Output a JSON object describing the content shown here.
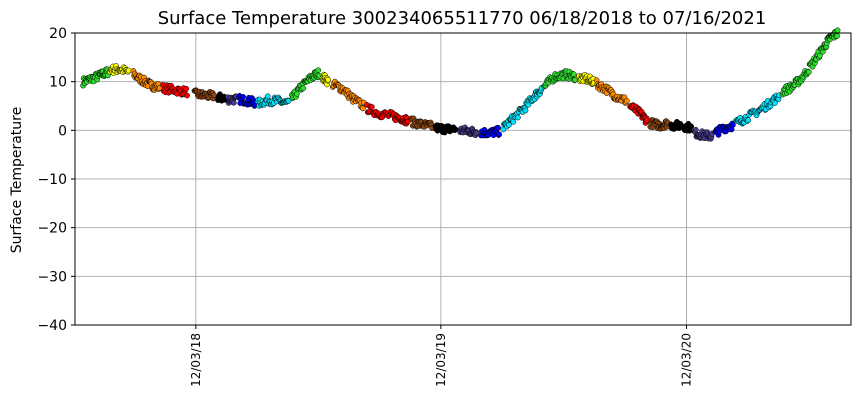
{
  "chart_data": {
    "type": "scatter",
    "title": "Surface Temperature 300234065511770  06/18/2018 to 07/16/2021",
    "xlabel": "",
    "ylabel": "Surface Temperature",
    "ylim": [
      -40,
      20
    ],
    "yticks": [
      "20",
      "10",
      "0",
      "−10",
      "−20",
      "−30",
      "−40"
    ],
    "ytick_values": [
      20,
      10,
      0,
      -10,
      -20,
      -30,
      -40
    ],
    "xlim": [
      "2018-06-06",
      "2021-08-05"
    ],
    "xticks": [
      {
        "date": "2018-12-03",
        "label": "12/03/18"
      },
      {
        "date": "2019-12-03",
        "label": "12/03/19"
      },
      {
        "date": "2020-12-03",
        "label": "12/03/20"
      }
    ],
    "grid": true,
    "marker_edge_color": "#000000",
    "series": [
      {
        "color": "#2ee02e",
        "points": [
          [
            "2018-06-18",
            10
          ],
          [
            "2018-07-01",
            10.6
          ],
          [
            "2018-07-15",
            11.4
          ],
          [
            "2018-07-25",
            12.0
          ]
        ]
      },
      {
        "color": "#ffff00",
        "points": [
          [
            "2018-07-28",
            12.4
          ],
          [
            "2018-08-10",
            12.6
          ],
          [
            "2018-08-25",
            12.0
          ]
        ]
      },
      {
        "color": "#ff8c00",
        "points": [
          [
            "2018-09-01",
            11.5
          ],
          [
            "2018-09-15",
            10.2
          ],
          [
            "2018-09-28",
            9.2
          ],
          [
            "2018-10-10",
            8.9
          ]
        ]
      },
      {
        "color": "#ff0000",
        "points": [
          [
            "2018-10-15",
            8.7
          ],
          [
            "2018-11-01",
            8.3
          ],
          [
            "2018-11-20",
            7.9
          ]
        ]
      },
      {
        "color": "#8b4513",
        "points": [
          [
            "2018-12-01",
            7.5
          ],
          [
            "2018-12-15",
            7.2
          ],
          [
            "2018-12-30",
            7.0
          ]
        ]
      },
      {
        "color": "#000000",
        "points": [
          [
            "2019-01-05",
            6.8
          ],
          [
            "2019-01-15",
            6.5
          ]
        ]
      },
      {
        "color": "#483d8b",
        "points": [
          [
            "2019-01-20",
            6.4
          ],
          [
            "2019-02-01",
            6.3
          ]
        ]
      },
      {
        "color": "#0000ff",
        "points": [
          [
            "2019-02-05",
            6.4
          ],
          [
            "2019-02-20",
            6.0
          ],
          [
            "2019-03-01",
            5.7
          ]
        ]
      },
      {
        "color": "#00e5ff",
        "points": [
          [
            "2019-03-05",
            5.5
          ],
          [
            "2019-03-20",
            6.2
          ],
          [
            "2019-04-05",
            6.0
          ],
          [
            "2019-04-20",
            5.5
          ]
        ]
      },
      {
        "color": "#2ee02e",
        "points": [
          [
            "2019-04-25",
            6.5
          ],
          [
            "2019-05-10",
            9.0
          ],
          [
            "2019-05-25",
            11.0
          ],
          [
            "2019-06-05",
            11.8
          ]
        ]
      },
      {
        "color": "#ffff00",
        "points": [
          [
            "2019-06-10",
            11.0
          ],
          [
            "2019-06-18",
            10.0
          ]
        ]
      },
      {
        "color": "#ff8c00",
        "points": [
          [
            "2019-06-25",
            9.5
          ],
          [
            "2019-07-10",
            8.5
          ],
          [
            "2019-07-25",
            6.5
          ],
          [
            "2019-08-10",
            5.0
          ]
        ]
      },
      {
        "color": "#ff0000",
        "points": [
          [
            "2019-08-15",
            4.5
          ],
          [
            "2019-09-01",
            3.5
          ],
          [
            "2019-09-20",
            3.0
          ],
          [
            "2019-10-05",
            2.5
          ],
          [
            "2019-10-15",
            2.0
          ]
        ]
      },
      {
        "color": "#8b4513",
        "points": [
          [
            "2019-10-20",
            1.8
          ],
          [
            "2019-11-05",
            1.2
          ],
          [
            "2019-11-20",
            0.8
          ]
        ]
      },
      {
        "color": "#000000",
        "points": [
          [
            "2019-11-25",
            0.5
          ],
          [
            "2019-12-10",
            0.3
          ],
          [
            "2019-12-25",
            0.2
          ]
        ]
      },
      {
        "color": "#483d8b",
        "points": [
          [
            "2020-01-01",
            0.0
          ],
          [
            "2020-01-15",
            -0.2
          ],
          [
            "2020-01-25",
            -0.3
          ]
        ]
      },
      {
        "color": "#0000ff",
        "points": [
          [
            "2020-02-01",
            -0.4
          ],
          [
            "2020-02-15",
            -0.5
          ],
          [
            "2020-02-28",
            -0.2
          ]
        ]
      },
      {
        "color": "#00e5ff",
        "points": [
          [
            "2020-03-05",
            0.5
          ],
          [
            "2020-03-20",
            2.5
          ],
          [
            "2020-04-05",
            4.5
          ],
          [
            "2020-04-20",
            7.0
          ],
          [
            "2020-05-01",
            8.5
          ]
        ]
      },
      {
        "color": "#2ee02e",
        "points": [
          [
            "2020-05-05",
            9.0
          ],
          [
            "2020-05-20",
            11.0
          ],
          [
            "2020-06-05",
            11.5
          ],
          [
            "2020-06-20",
            11.0
          ]
        ]
      },
      {
        "color": "#ffff00",
        "points": [
          [
            "2020-06-25",
            10.8
          ],
          [
            "2020-07-08",
            10.5
          ],
          [
            "2020-07-18",
            10.0
          ]
        ]
      },
      {
        "color": "#ff8c00",
        "points": [
          [
            "2020-07-22",
            9.5
          ],
          [
            "2020-08-05",
            8.5
          ],
          [
            "2020-08-20",
            7.0
          ],
          [
            "2020-09-05",
            6.0
          ]
        ]
      },
      {
        "color": "#ff0000",
        "points": [
          [
            "2020-09-10",
            5.0
          ],
          [
            "2020-09-25",
            3.5
          ],
          [
            "2020-10-05",
            2.0
          ]
        ]
      },
      {
        "color": "#8b4513",
        "points": [
          [
            "2020-10-10",
            1.5
          ],
          [
            "2020-10-25",
            1.0
          ],
          [
            "2020-11-05",
            1.5
          ]
        ]
      },
      {
        "color": "#000000",
        "points": [
          [
            "2020-11-10",
            1.0
          ],
          [
            "2020-11-25",
            1.0
          ],
          [
            "2020-12-10",
            0.5
          ]
        ]
      },
      {
        "color": "#483d8b",
        "points": [
          [
            "2020-12-15",
            -0.5
          ],
          [
            "2020-12-28",
            -1.0
          ],
          [
            "2021-01-10",
            -1.2
          ]
        ]
      },
      {
        "color": "#0000ff",
        "points": [
          [
            "2021-01-15",
            -0.5
          ],
          [
            "2021-01-28",
            0.5
          ],
          [
            "2021-02-10",
            1.0
          ]
        ]
      },
      {
        "color": "#00e5ff",
        "points": [
          [
            "2021-02-15",
            1.5
          ],
          [
            "2021-03-01",
            2.5
          ],
          [
            "2021-03-20",
            4.0
          ],
          [
            "2021-04-05",
            5.5
          ],
          [
            "2021-04-20",
            7.0
          ]
        ]
      },
      {
        "color": "#2ee02e",
        "points": [
          [
            "2021-04-25",
            8.0
          ],
          [
            "2021-05-10",
            9.0
          ],
          [
            "2021-05-25",
            11.0
          ],
          [
            "2021-06-10",
            14.0
          ],
          [
            "2021-06-25",
            17.0
          ],
          [
            "2021-07-05",
            19.0
          ],
          [
            "2021-07-16",
            20.0
          ]
        ]
      }
    ]
  }
}
